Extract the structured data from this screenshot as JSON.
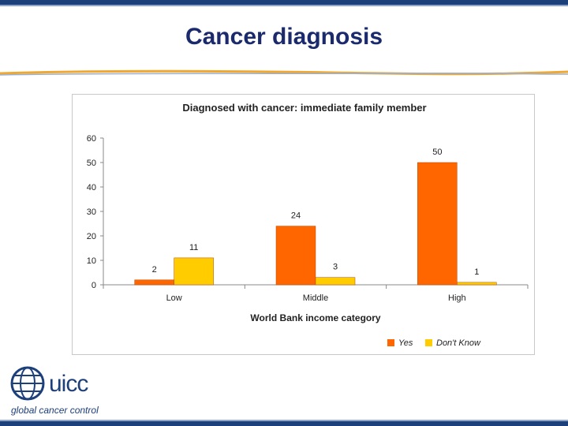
{
  "slide": {
    "title": "Cancer diagnosis"
  },
  "logo": {
    "name": "uicc",
    "tagline": "global cancer control"
  },
  "colors": {
    "yes": "#ff6600",
    "dont_know": "#ffcc00",
    "title": "#1a2a6c",
    "border": "#1d3f7a"
  },
  "chart_data": {
    "type": "bar",
    "title": "Diagnosed with cancer: immediate family member",
    "xlabel": "World Bank income category",
    "ylabel": "",
    "categories": [
      "Low",
      "Middle",
      "High"
    ],
    "series": [
      {
        "name": "Yes",
        "values": [
          2,
          24,
          50
        ],
        "color": "#ff6600"
      },
      {
        "name": "Don't Know",
        "values": [
          11,
          3,
          1
        ],
        "color": "#ffcc00"
      }
    ],
    "ylim": [
      0,
      60
    ],
    "yticks": [
      0,
      10,
      20,
      30,
      40,
      50,
      60
    ],
    "data_labels": true,
    "grid": false,
    "legend_position": "bottom-right"
  }
}
